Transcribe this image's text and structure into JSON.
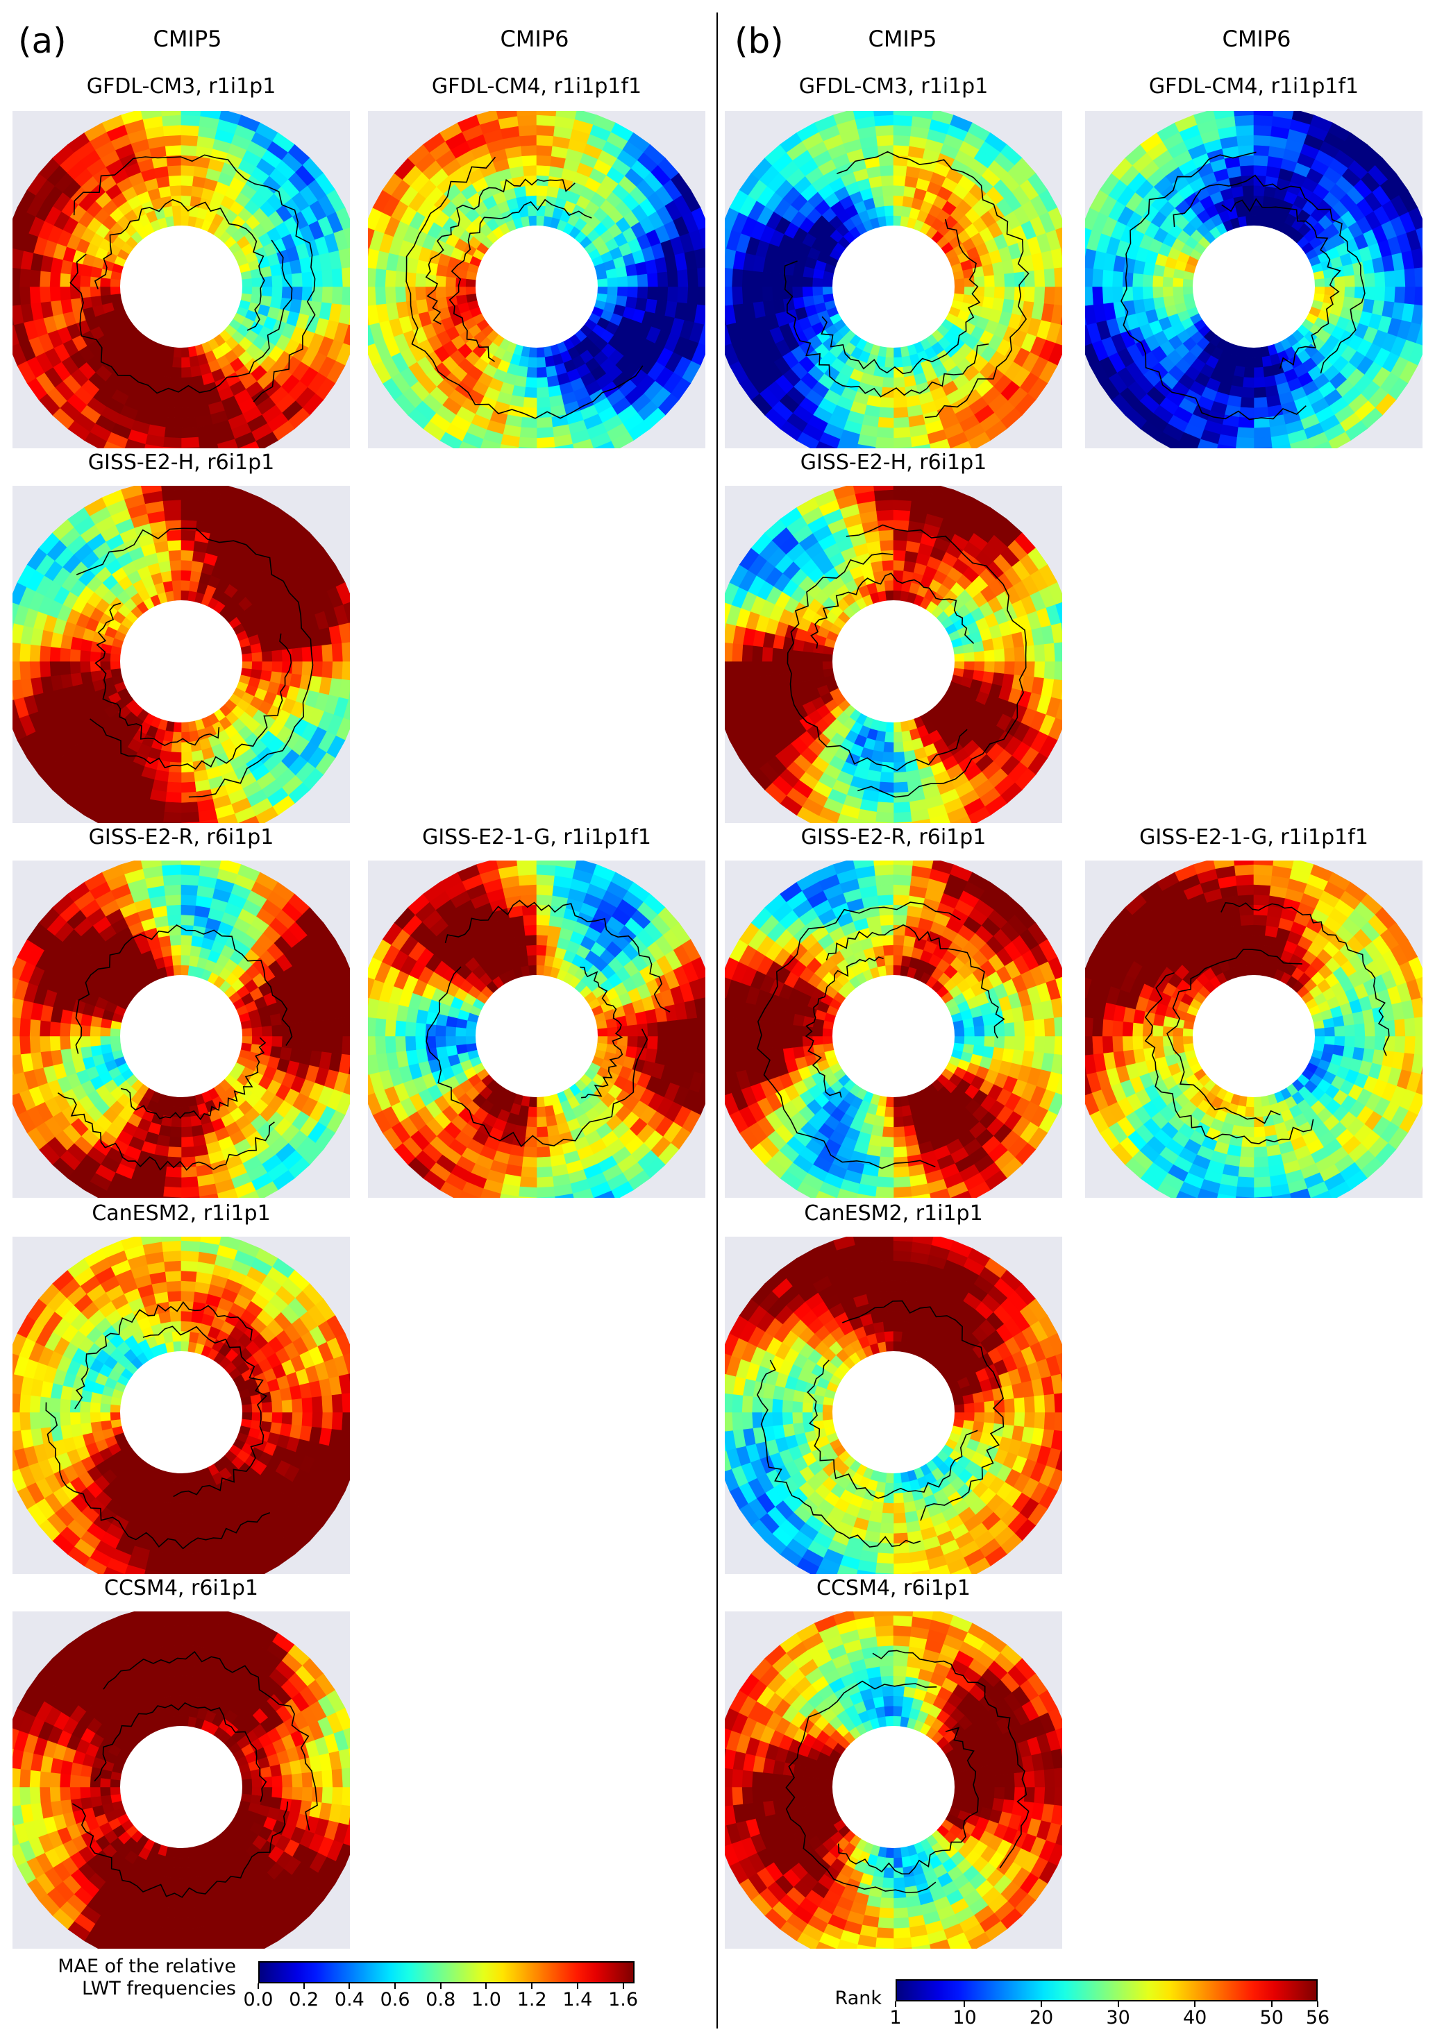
{
  "panel_a": {
    "label": "(a)",
    "columns": [
      "CMIP5",
      "CMIP6"
    ],
    "maps": [
      {
        "title": "GFDL-CM3, r1i1p1",
        "row": 0,
        "col": 0,
        "mean": 0.75,
        "seed": 11
      },
      {
        "title": "GFDL-CM4, r1i1p1f1",
        "row": 0,
        "col": 1,
        "mean": 0.45,
        "seed": 12
      },
      {
        "title": "GISS-E2-H, r6i1p1",
        "row": 1,
        "col": 0,
        "mean": 0.85,
        "seed": 13
      },
      {
        "title": "GISS-E2-R, r6i1p1",
        "row": 2,
        "col": 0,
        "mean": 0.8,
        "seed": 14
      },
      {
        "title": "GISS-E2-1-G, r1i1p1f1",
        "row": 2,
        "col": 1,
        "mean": 0.7,
        "seed": 15
      },
      {
        "title": "CanESM2, r1i1p1",
        "row": 3,
        "col": 0,
        "mean": 0.85,
        "seed": 16
      },
      {
        "title": "CCSM4, r6i1p1",
        "row": 4,
        "col": 0,
        "mean": 1.05,
        "seed": 17
      }
    ],
    "colorbar": {
      "label_line1": "MAE of the relative",
      "label_line2": "LWT frequencies",
      "min": 0.0,
      "max": 1.65,
      "ticks": [
        "0.0",
        "0.2",
        "0.4",
        "0.6",
        "0.8",
        "1.0",
        "1.2",
        "1.4",
        "1.6"
      ]
    }
  },
  "panel_b": {
    "label": "(b)",
    "columns": [
      "CMIP5",
      "CMIP6"
    ],
    "maps": [
      {
        "title": "GFDL-CM3, r1i1p1",
        "row": 0,
        "col": 0,
        "mean": 0.42,
        "seed": 21
      },
      {
        "title": "GFDL-CM4, r1i1p1f1",
        "row": 0,
        "col": 1,
        "mean": 0.25,
        "seed": 22
      },
      {
        "title": "GISS-E2-H, r6i1p1",
        "row": 1,
        "col": 0,
        "mean": 0.75,
        "seed": 23
      },
      {
        "title": "GISS-E2-R, r6i1p1",
        "row": 2,
        "col": 0,
        "mean": 0.72,
        "seed": 24
      },
      {
        "title": "GISS-E2-1-G, r1i1p1f1",
        "row": 2,
        "col": 1,
        "mean": 0.68,
        "seed": 25
      },
      {
        "title": "CanESM2, r1i1p1",
        "row": 3,
        "col": 0,
        "mean": 0.72,
        "seed": 26
      },
      {
        "title": "CCSM4, r6i1p1",
        "row": 4,
        "col": 0,
        "mean": 0.78,
        "seed": 27
      }
    ],
    "colorbar": {
      "label": "Rank",
      "min": 1,
      "max": 56,
      "ticks": [
        "1",
        "10",
        "20",
        "30",
        "40",
        "50",
        "56"
      ]
    }
  },
  "chart_data": {
    "type": "heatmap",
    "projection": "north polar stereographic",
    "colormap": "jet",
    "panels": [
      {
        "label": "(a)",
        "quantity": "MAE of the relative LWT frequencies",
        "range": [
          0.0,
          1.65
        ]
      },
      {
        "label": "(b)",
        "quantity": "Rank",
        "range": [
          1,
          56
        ]
      }
    ]
  }
}
